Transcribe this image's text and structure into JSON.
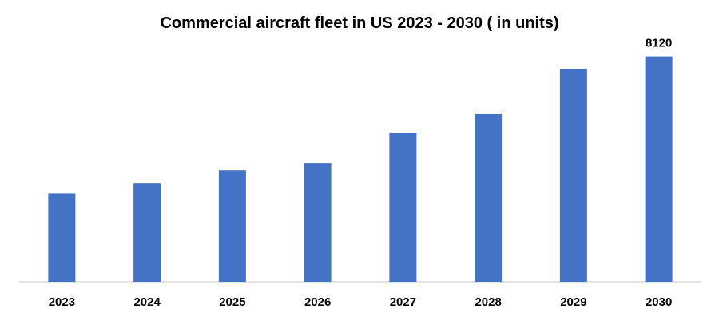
{
  "chart_data": {
    "type": "bar",
    "title": "Commercial aircraft fleet in US 2023 - 2030 ( in units)",
    "xlabel": "",
    "ylabel": "",
    "categories": [
      "2023",
      "2024",
      "2025",
      "2026",
      "2027",
      "2028",
      "2029",
      "2030"
    ],
    "values": [
      3180,
      3560,
      4020,
      4280,
      5370,
      6040,
      7670,
      8120
    ],
    "data_labels": [
      null,
      null,
      null,
      null,
      null,
      null,
      null,
      "8120"
    ],
    "ylim": [
      0,
      9000
    ],
    "grid": false,
    "legend": "none",
    "bar_color": "#4472C4",
    "axis_color": "#d9d9d9"
  }
}
